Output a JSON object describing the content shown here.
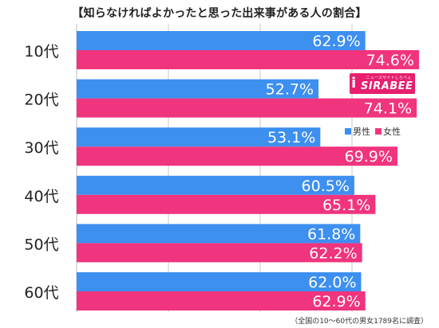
{
  "title": "【知らなければよかったと思った出来事がある人の割合】",
  "footnote": "（全国の10〜60代の男女1789名に調査）",
  "logo": {
    "sub": "ニュースサイトしらべぇ",
    "main": "SIRABEE",
    "mark": "i"
  },
  "colors": {
    "male": "#3d8ff0",
    "female": "#f0347d",
    "grid": "#bbbbbb"
  },
  "chart_data": {
    "type": "bar",
    "orientation": "horizontal",
    "categories": [
      "10代",
      "20代",
      "30代",
      "40代",
      "50代",
      "60代"
    ],
    "series": [
      {
        "name": "男性",
        "values": [
          62.9,
          52.7,
          53.1,
          60.5,
          61.8,
          62.0
        ],
        "labels": [
          "62.9%",
          "52.7%",
          "53.1%",
          "60.5%",
          "61.8%",
          "62.0%"
        ]
      },
      {
        "name": "女性",
        "values": [
          74.6,
          74.1,
          69.9,
          65.1,
          62.2,
          62.9
        ],
        "labels": [
          "74.6%",
          "74.1%",
          "69.9%",
          "65.1%",
          "62.2%",
          "62.9%"
        ]
      }
    ],
    "xlim": [
      0,
      100
    ],
    "grid": true,
    "legend": "right"
  }
}
